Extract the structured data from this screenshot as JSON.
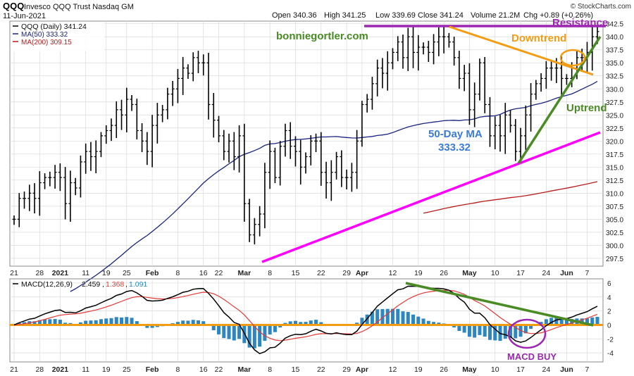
{
  "header": {
    "symbol": "QQQ",
    "name": "Invesco QQQ Trust Nasdaq GM",
    "date": "11-Jun-2021",
    "open": "Open 340.36",
    "high": "High 341.25",
    "low": "Low 339.69",
    "close": "Close 341.24",
    "volume": "Volume 21.2M",
    "chg": "Chg +0.89 (+0.26%)",
    "watermark": "© StockCharts.com"
  },
  "legend": {
    "price": "QQQ (Daily) 341.24",
    "ma50": "MA(50) 333.32",
    "ma200": "MA(200) 309.15"
  },
  "annotations": {
    "site": "bonniegortler.com",
    "resistance": "Resistance",
    "downtrend": "Downtrend",
    "uptrend": "Uptrend",
    "ma_label_1": "50-Day MA",
    "ma_label_2": "333.32",
    "macd_buy": "MACD BUY"
  },
  "colors": {
    "price_bars": "#000000",
    "ma50": "#1a237e",
    "ma200": "#b71c1c",
    "resistance": "#9c27b0",
    "support": "#ff00ff",
    "downtrend": "#f39c12",
    "uptrend": "#4b8b26",
    "macd_line": "#000000",
    "signal_line": "#e53935",
    "histogram": "#2e86c1",
    "zero_line": "#f39c12",
    "grid": "#d9d9d9"
  },
  "chart_data": [
    {
      "type": "ohlc",
      "panel": "price",
      "ylim": [
        296,
        343
      ],
      "y_ticks": [
        "297.5",
        "300.0",
        "302.5",
        "305.0",
        "307.5",
        "310.0",
        "312.5",
        "315.0",
        "317.5",
        "320.0",
        "322.5",
        "325.0",
        "327.5",
        "330.0",
        "332.5",
        "335.0",
        "337.5",
        "340.0",
        "342.5"
      ],
      "x_ticks": [
        {
          "label": "21",
          "i": 0
        },
        {
          "label": "28",
          "i": 5
        },
        {
          "label": "2021",
          "i": 9
        },
        {
          "label": "11",
          "i": 14
        },
        {
          "label": "19",
          "i": 18
        },
        {
          "label": "25",
          "i": 22
        },
        {
          "label": "Feb",
          "i": 27
        },
        {
          "label": "8",
          "i": 32
        },
        {
          "label": "16",
          "i": 37
        },
        {
          "label": "22",
          "i": 40
        },
        {
          "label": "Mar",
          "i": 45
        },
        {
          "label": "8",
          "i": 50
        },
        {
          "label": "15",
          "i": 55
        },
        {
          "label": "22",
          "i": 60
        },
        {
          "label": "29",
          "i": 65
        },
        {
          "label": "Apr",
          "i": 68
        },
        {
          "label": "12",
          "i": 74
        },
        {
          "label": "19",
          "i": 79
        },
        {
          "label": "26",
          "i": 84
        },
        {
          "label": "May",
          "i": 89
        },
        {
          "label": "10",
          "i": 94
        },
        {
          "label": "17",
          "i": 99
        },
        {
          "label": "24",
          "i": 104
        },
        {
          "label": "Jun",
          "i": 108
        },
        {
          "label": "7",
          "i": 112
        }
      ],
      "close": [
        305,
        309,
        309,
        310,
        309,
        312,
        313,
        313,
        314,
        313,
        308,
        312,
        311,
        316,
        318,
        317,
        318,
        321,
        322,
        323,
        326,
        325,
        328,
        327,
        322,
        320,
        318,
        323,
        325,
        326,
        329,
        330,
        332,
        334,
        333,
        336,
        335,
        335,
        327,
        324,
        321,
        318,
        320,
        317,
        321,
        308,
        302,
        304,
        306,
        314,
        318,
        313,
        319,
        322,
        319,
        318,
        315,
        317,
        320,
        320,
        314,
        312,
        314,
        317,
        313,
        313,
        314,
        320,
        327,
        328,
        331,
        334,
        333,
        335,
        337,
        339,
        336,
        340,
        337,
        338,
        338,
        337,
        339,
        340,
        340,
        339,
        336,
        332,
        333,
        326,
        329,
        335,
        327,
        321,
        323,
        321,
        325,
        323,
        318,
        321,
        325,
        329,
        331,
        332,
        334,
        334,
        334,
        332,
        332,
        334,
        336,
        336,
        337,
        340,
        341
      ],
      "ma50": [
        null,
        null,
        null,
        null,
        null,
        null,
        null,
        null,
        null,
        null,
        null,
        null,
        null,
        null,
        null,
        null,
        null,
        null,
        null,
        null,
        null,
        null,
        null,
        null,
        null,
        null,
        null,
        null,
        null,
        null,
        null,
        null,
        null,
        null,
        null,
        null,
        null,
        null,
        null,
        null,
        null,
        null,
        null,
        null,
        null,
        null,
        null,
        null,
        null,
        null,
        null,
        null,
        null,
        null,
        null,
        null,
        null,
        null,
        null,
        null,
        null,
        null,
        null,
        null,
        null,
        null,
        null,
        null,
        null,
        null,
        null,
        null,
        null,
        null,
        null,
        null,
        null,
        null,
        null,
        null,
        null,
        null,
        null,
        null,
        null,
        null,
        null,
        null,
        null,
        null,
        null,
        null,
        null,
        null,
        null,
        null,
        null,
        null,
        null,
        null,
        null,
        null,
        null,
        null,
        null,
        null,
        null,
        null,
        null,
        null,
        null,
        null,
        null,
        null,
        null
      ],
      "ma50_last": 333.32,
      "ma200_last": 309.15,
      "last_close": 341.24
    },
    {
      "type": "line+histogram",
      "panel": "macd",
      "label": "MACD(12,26,9)",
      "macd_value": "2.459",
      "signal_value": "1.368",
      "hist_value": "1.091",
      "ylim": [
        -5.3,
        6.6
      ],
      "y_ticks": [
        "6",
        "4",
        "2",
        "0",
        "-2",
        "-4"
      ]
    }
  ]
}
